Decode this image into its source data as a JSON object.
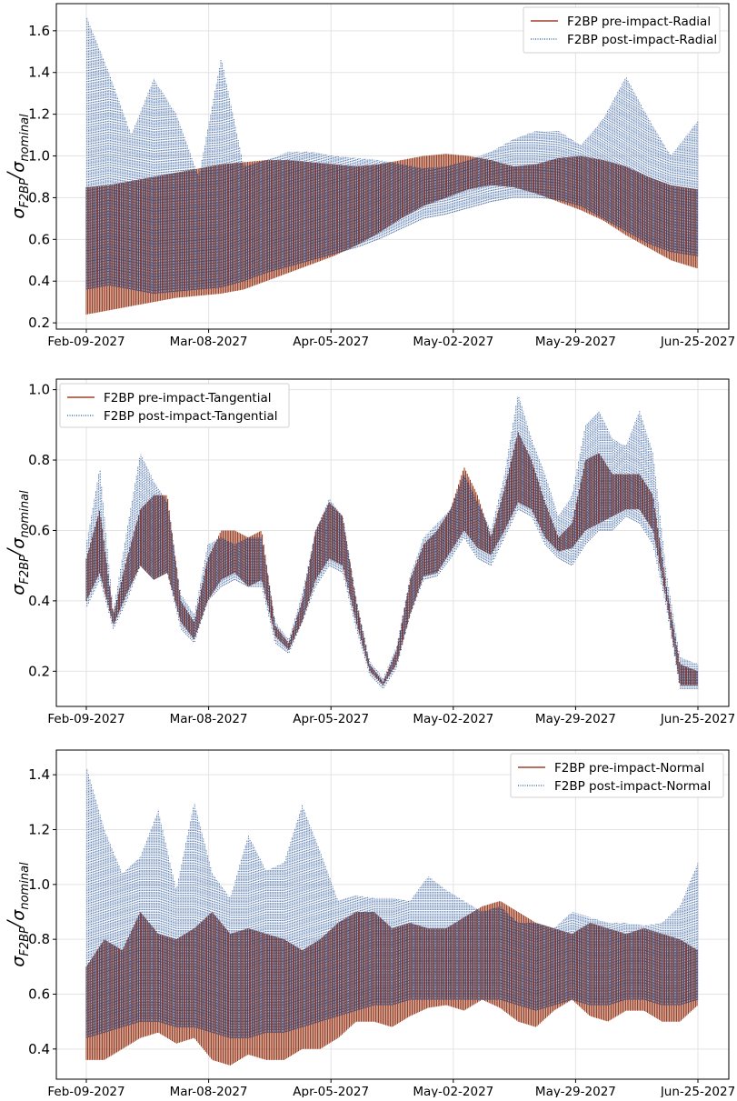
{
  "colors": {
    "pre": "#8b1a00",
    "post": "#1f5aa0",
    "band_pre": "#8c2100",
    "band_post": "#243a6e",
    "band_post_light": "#7fa6d6"
  },
  "chart_data": [
    {
      "type": "line",
      "ylabel": "σ_F2BP/σ_nominal",
      "ylim": [
        0.17,
        1.73
      ],
      "yticks": [
        0.2,
        0.4,
        0.6,
        0.8,
        1.0,
        1.2,
        1.4,
        1.6
      ],
      "xticks": [
        "Feb-09-2027",
        "Mar-08-2027",
        "Apr-05-2027",
        "May-02-2027",
        "May-29-2027",
        "Jun-25-2027"
      ],
      "grid": true,
      "legend_position": "top-right",
      "series": [
        {
          "name": "F2BP pre-impact-Radial",
          "style": "solid",
          "x": [
            "2027-02-09",
            "2027-02-14",
            "2027-02-19",
            "2027-02-24",
            "2027-03-01",
            "2027-03-06",
            "2027-03-11",
            "2027-03-16",
            "2027-03-21",
            "2027-03-26",
            "2027-03-31",
            "2027-04-05",
            "2027-04-10",
            "2027-04-15",
            "2027-04-20",
            "2027-04-25",
            "2027-04-30",
            "2027-05-05",
            "2027-05-10",
            "2027-05-15",
            "2027-05-20",
            "2027-05-25",
            "2027-05-30",
            "2027-06-04",
            "2027-06-09",
            "2027-06-14",
            "2027-06-19",
            "2027-06-25"
          ],
          "low": [
            0.24,
            0.26,
            0.28,
            0.3,
            0.32,
            0.33,
            0.34,
            0.36,
            0.4,
            0.44,
            0.48,
            0.52,
            0.57,
            0.63,
            0.7,
            0.76,
            0.8,
            0.84,
            0.86,
            0.85,
            0.82,
            0.78,
            0.74,
            0.69,
            0.62,
            0.56,
            0.5,
            0.46
          ],
          "high": [
            0.85,
            0.86,
            0.88,
            0.9,
            0.92,
            0.94,
            0.96,
            0.97,
            0.98,
            0.98,
            0.97,
            0.96,
            0.95,
            0.96,
            0.98,
            1.0,
            1.01,
            1.0,
            0.98,
            0.95,
            0.96,
            0.99,
            1.0,
            0.98,
            0.95,
            0.9,
            0.86,
            0.84
          ]
        },
        {
          "name": "F2BP post-impact-Radial",
          "style": "dotted",
          "x": [
            "2027-02-09",
            "2027-02-14",
            "2027-02-19",
            "2027-02-24",
            "2027-03-01",
            "2027-03-06",
            "2027-03-11",
            "2027-03-16",
            "2027-03-21",
            "2027-03-26",
            "2027-03-31",
            "2027-04-05",
            "2027-04-10",
            "2027-04-15",
            "2027-04-20",
            "2027-04-25",
            "2027-04-30",
            "2027-05-05",
            "2027-05-10",
            "2027-05-15",
            "2027-05-20",
            "2027-05-25",
            "2027-05-30",
            "2027-06-04",
            "2027-06-09",
            "2027-06-14",
            "2027-06-19",
            "2027-06-25"
          ],
          "low": [
            0.36,
            0.38,
            0.36,
            0.34,
            0.35,
            0.36,
            0.37,
            0.4,
            0.44,
            0.47,
            0.5,
            0.53,
            0.56,
            0.6,
            0.65,
            0.7,
            0.72,
            0.75,
            0.78,
            0.8,
            0.8,
            0.79,
            0.76,
            0.7,
            0.64,
            0.58,
            0.54,
            0.52
          ],
          "high": [
            1.67,
            1.4,
            1.1,
            1.37,
            1.2,
            0.9,
            1.47,
            0.95,
            0.98,
            1.02,
            1.02,
            1.0,
            0.99,
            0.98,
            0.96,
            0.94,
            0.95,
            0.98,
            1.02,
            1.08,
            1.12,
            1.12,
            1.05,
            1.18,
            1.38,
            1.18,
            1.0,
            1.17
          ]
        }
      ]
    },
    {
      "type": "line",
      "ylabel": "σ_F2BP/σ_nominal",
      "ylim": [
        0.1,
        1.03
      ],
      "yticks": [
        0.2,
        0.4,
        0.6,
        0.8,
        1.0
      ],
      "xticks": [
        "Feb-09-2027",
        "Mar-08-2027",
        "Apr-05-2027",
        "May-02-2027",
        "May-29-2027",
        "Jun-25-2027"
      ],
      "grid": true,
      "legend_position": "top-left",
      "series": [
        {
          "name": "F2BP pre-impact-Tangential",
          "style": "solid",
          "x": [
            "2027-02-09",
            "2027-02-12",
            "2027-02-15",
            "2027-02-18",
            "2027-02-21",
            "2027-02-24",
            "2027-02-27",
            "2027-03-02",
            "2027-03-05",
            "2027-03-08",
            "2027-03-11",
            "2027-03-14",
            "2027-03-17",
            "2027-03-20",
            "2027-03-23",
            "2027-03-26",
            "2027-03-29",
            "2027-04-01",
            "2027-04-04",
            "2027-04-07",
            "2027-04-10",
            "2027-04-13",
            "2027-04-16",
            "2027-04-19",
            "2027-04-22",
            "2027-04-25",
            "2027-04-28",
            "2027-05-01",
            "2027-05-04",
            "2027-05-07",
            "2027-05-10",
            "2027-05-13",
            "2027-05-16",
            "2027-05-19",
            "2027-05-22",
            "2027-05-25",
            "2027-05-28",
            "2027-05-31",
            "2027-06-03",
            "2027-06-06",
            "2027-06-09",
            "2027-06-12",
            "2027-06-15",
            "2027-06-18",
            "2027-06-21",
            "2027-06-25"
          ],
          "low": [
            0.4,
            0.48,
            0.33,
            0.42,
            0.5,
            0.46,
            0.48,
            0.34,
            0.29,
            0.4,
            0.46,
            0.48,
            0.44,
            0.46,
            0.3,
            0.26,
            0.34,
            0.46,
            0.52,
            0.5,
            0.34,
            0.2,
            0.16,
            0.22,
            0.36,
            0.47,
            0.48,
            0.54,
            0.6,
            0.55,
            0.53,
            0.6,
            0.68,
            0.66,
            0.58,
            0.54,
            0.55,
            0.6,
            0.62,
            0.64,
            0.66,
            0.66,
            0.6,
            0.4,
            0.16,
            0.16
          ],
          "high": [
            0.52,
            0.66,
            0.36,
            0.52,
            0.66,
            0.7,
            0.7,
            0.4,
            0.34,
            0.52,
            0.6,
            0.6,
            0.58,
            0.6,
            0.33,
            0.28,
            0.4,
            0.6,
            0.68,
            0.64,
            0.4,
            0.22,
            0.17,
            0.26,
            0.46,
            0.56,
            0.6,
            0.66,
            0.78,
            0.7,
            0.58,
            0.72,
            0.88,
            0.8,
            0.68,
            0.58,
            0.62,
            0.8,
            0.82,
            0.76,
            0.76,
            0.76,
            0.7,
            0.44,
            0.22,
            0.2
          ]
        },
        {
          "name": "F2BP post-impact-Tangential",
          "style": "dotted",
          "x": [
            "2027-02-09",
            "2027-02-12",
            "2027-02-15",
            "2027-02-18",
            "2027-02-21",
            "2027-02-24",
            "2027-02-27",
            "2027-03-02",
            "2027-03-05",
            "2027-03-08",
            "2027-03-11",
            "2027-03-14",
            "2027-03-17",
            "2027-03-20",
            "2027-03-23",
            "2027-03-26",
            "2027-03-29",
            "2027-04-01",
            "2027-04-04",
            "2027-04-07",
            "2027-04-10",
            "2027-04-13",
            "2027-04-16",
            "2027-04-19",
            "2027-04-22",
            "2027-04-25",
            "2027-04-28",
            "2027-05-01",
            "2027-05-04",
            "2027-05-07",
            "2027-05-10",
            "2027-05-13",
            "2027-05-16",
            "2027-05-19",
            "2027-05-22",
            "2027-05-25",
            "2027-05-28",
            "2027-05-31",
            "2027-06-03",
            "2027-06-06",
            "2027-06-09",
            "2027-06-12",
            "2027-06-15",
            "2027-06-18",
            "2027-06-21",
            "2027-06-25"
          ],
          "low": [
            0.38,
            0.46,
            0.32,
            0.4,
            0.5,
            0.46,
            0.48,
            0.32,
            0.28,
            0.4,
            0.44,
            0.46,
            0.44,
            0.44,
            0.28,
            0.25,
            0.34,
            0.44,
            0.5,
            0.48,
            0.32,
            0.19,
            0.15,
            0.21,
            0.36,
            0.46,
            0.47,
            0.52,
            0.58,
            0.52,
            0.5,
            0.58,
            0.66,
            0.64,
            0.56,
            0.52,
            0.5,
            0.56,
            0.6,
            0.6,
            0.64,
            0.62,
            0.56,
            0.38,
            0.15,
            0.15
          ],
          "high": [
            0.56,
            0.78,
            0.37,
            0.6,
            0.82,
            0.74,
            0.68,
            0.42,
            0.36,
            0.56,
            0.58,
            0.56,
            0.58,
            0.58,
            0.34,
            0.29,
            0.42,
            0.6,
            0.69,
            0.64,
            0.41,
            0.23,
            0.18,
            0.27,
            0.47,
            0.58,
            0.62,
            0.66,
            0.76,
            0.68,
            0.6,
            0.76,
            0.99,
            0.86,
            0.76,
            0.64,
            0.7,
            0.9,
            0.94,
            0.86,
            0.84,
            0.94,
            0.82,
            0.48,
            0.24,
            0.22
          ]
        }
      ]
    },
    {
      "type": "line",
      "ylabel": "σ_F2BP/σ_nominal",
      "ylim": [
        0.29,
        1.49
      ],
      "yticks": [
        0.4,
        0.6,
        0.8,
        1.0,
        1.2,
        1.4
      ],
      "xticks": [
        "Feb-09-2027",
        "Mar-08-2027",
        "Apr-05-2027",
        "May-02-2027",
        "May-29-2027",
        "Jun-25-2027"
      ],
      "grid": true,
      "legend_position": "top-right",
      "series": [
        {
          "name": "F2BP pre-impact-Normal",
          "style": "solid",
          "x": [
            "2027-02-09",
            "2027-02-13",
            "2027-02-17",
            "2027-02-21",
            "2027-02-25",
            "2027-03-01",
            "2027-03-05",
            "2027-03-09",
            "2027-03-13",
            "2027-03-17",
            "2027-03-21",
            "2027-03-25",
            "2027-03-29",
            "2027-04-02",
            "2027-04-06",
            "2027-04-10",
            "2027-04-14",
            "2027-04-18",
            "2027-04-22",
            "2027-04-26",
            "2027-04-30",
            "2027-05-04",
            "2027-05-08",
            "2027-05-12",
            "2027-05-16",
            "2027-05-20",
            "2027-05-24",
            "2027-05-28",
            "2027-06-01",
            "2027-06-05",
            "2027-06-09",
            "2027-06-13",
            "2027-06-17",
            "2027-06-21",
            "2027-06-25"
          ],
          "low": [
            0.36,
            0.36,
            0.4,
            0.44,
            0.46,
            0.42,
            0.44,
            0.36,
            0.34,
            0.38,
            0.36,
            0.36,
            0.4,
            0.4,
            0.44,
            0.5,
            0.5,
            0.48,
            0.52,
            0.55,
            0.56,
            0.54,
            0.58,
            0.55,
            0.5,
            0.48,
            0.54,
            0.58,
            0.52,
            0.5,
            0.54,
            0.54,
            0.5,
            0.5,
            0.56
          ],
          "high": [
            0.7,
            0.8,
            0.76,
            0.9,
            0.82,
            0.8,
            0.84,
            0.9,
            0.82,
            0.84,
            0.82,
            0.8,
            0.76,
            0.8,
            0.86,
            0.9,
            0.9,
            0.84,
            0.86,
            0.84,
            0.84,
            0.88,
            0.92,
            0.94,
            0.9,
            0.86,
            0.84,
            0.82,
            0.86,
            0.84,
            0.82,
            0.84,
            0.82,
            0.8,
            0.76
          ]
        },
        {
          "name": "F2BP post-impact-Normal",
          "style": "dotted",
          "x": [
            "2027-02-09",
            "2027-02-13",
            "2027-02-17",
            "2027-02-21",
            "2027-02-25",
            "2027-03-01",
            "2027-03-05",
            "2027-03-09",
            "2027-03-13",
            "2027-03-17",
            "2027-03-21",
            "2027-03-25",
            "2027-03-29",
            "2027-04-02",
            "2027-04-06",
            "2027-04-10",
            "2027-04-14",
            "2027-04-18",
            "2027-04-22",
            "2027-04-26",
            "2027-04-30",
            "2027-05-04",
            "2027-05-08",
            "2027-05-12",
            "2027-05-16",
            "2027-05-20",
            "2027-05-24",
            "2027-05-28",
            "2027-06-01",
            "2027-06-05",
            "2027-06-09",
            "2027-06-13",
            "2027-06-17",
            "2027-06-21",
            "2027-06-25"
          ],
          "low": [
            0.44,
            0.46,
            0.48,
            0.5,
            0.5,
            0.48,
            0.48,
            0.46,
            0.44,
            0.44,
            0.46,
            0.46,
            0.48,
            0.5,
            0.52,
            0.54,
            0.56,
            0.56,
            0.58,
            0.58,
            0.58,
            0.58,
            0.58,
            0.58,
            0.56,
            0.54,
            0.56,
            0.58,
            0.56,
            0.56,
            0.58,
            0.58,
            0.56,
            0.56,
            0.58
          ],
          "high": [
            1.43,
            1.2,
            1.04,
            1.1,
            1.27,
            0.98,
            1.3,
            1.04,
            0.95,
            1.18,
            1.05,
            1.08,
            1.29,
            1.12,
            0.94,
            0.96,
            0.95,
            0.95,
            0.94,
            1.03,
            0.98,
            0.94,
            0.9,
            0.92,
            0.86,
            0.86,
            0.84,
            0.9,
            0.88,
            0.86,
            0.86,
            0.85,
            0.86,
            0.92,
            1.08
          ]
        }
      ]
    }
  ]
}
